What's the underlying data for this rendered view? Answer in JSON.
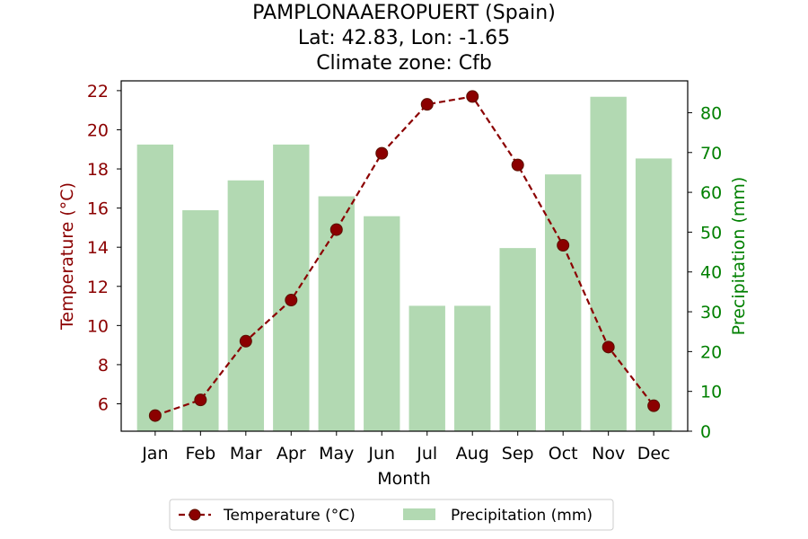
{
  "titles": [
    "PAMPLONAAEROPUERT (Spain)",
    "Lat: 42.83, Lon: -1.65",
    "Climate zone: Cfb"
  ],
  "colors": {
    "temperature": "#8b0000",
    "temperature_marker_edge": "#5a1000",
    "precipitation": "#b2d9b2",
    "precip_axis": "#008000"
  },
  "chart_data": {
    "type": "bar+line",
    "title": "PAMPLONAAEROPUERT (Spain)\nLat: 42.83, Lon: -1.65\nClimate zone: Cfb",
    "categories": [
      "Jan",
      "Feb",
      "Mar",
      "Apr",
      "May",
      "Jun",
      "Jul",
      "Aug",
      "Sep",
      "Oct",
      "Nov",
      "Dec"
    ],
    "xlabel": "Month",
    "series": [
      {
        "name": "Temperature (°C)",
        "kind": "line",
        "axis": "left",
        "style": "dashed with circle markers",
        "values": [
          5.4,
          6.2,
          9.2,
          11.3,
          14.9,
          18.8,
          21.3,
          21.7,
          18.2,
          14.1,
          8.9,
          5.9
        ]
      },
      {
        "name": "Precipitation (mm)",
        "kind": "bar",
        "axis": "right",
        "values": [
          72,
          55.5,
          63,
          72,
          59,
          54,
          31.5,
          31.5,
          46,
          64.5,
          84,
          68.5
        ]
      }
    ],
    "y_left": {
      "label": "Temperature (°C)",
      "ylim": [
        4.6,
        22.5
      ],
      "ticks": [
        6,
        8,
        10,
        12,
        14,
        16,
        18,
        20,
        22
      ]
    },
    "y_right": {
      "label": "Precipitation (mm)",
      "ylim": [
        0,
        88
      ],
      "ticks": [
        0,
        10,
        20,
        30,
        40,
        50,
        60,
        70,
        80
      ]
    },
    "grid": false,
    "legend": {
      "placement": "bottom-center",
      "entries": [
        "Temperature (°C)",
        "Precipitation (mm)"
      ]
    }
  }
}
